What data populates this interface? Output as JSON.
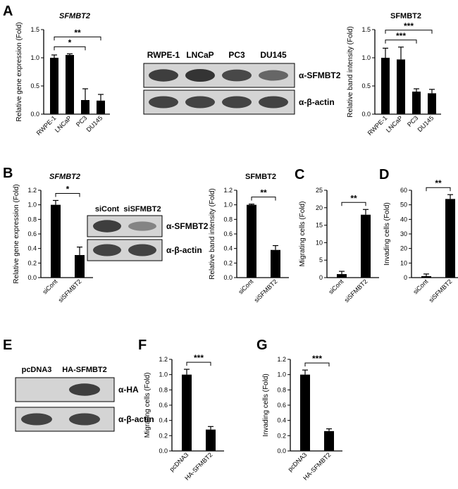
{
  "colors": {
    "bar": "#000000",
    "axis": "#000000",
    "blot_bg": "#d4d4d4",
    "band": "#2b2b2b"
  },
  "panel_letters": [
    "A",
    "B",
    "C",
    "D",
    "E",
    "F",
    "G"
  ],
  "blots": [
    {
      "id": "A",
      "columns": [
        "RWPE-1",
        "LNCaP",
        "PC3",
        "DU145"
      ],
      "rows": [
        {
          "label": "α-SFMBT2",
          "bands": [
            0.9,
            1.0,
            0.8,
            0.5
          ]
        },
        {
          "label": "α-β-actin",
          "bands": [
            0.85,
            0.85,
            0.85,
            0.85
          ]
        }
      ]
    },
    {
      "id": "B",
      "columns": [
        "siCont",
        "siSFMBT2"
      ],
      "rows": [
        {
          "label": "α-SFMBT2",
          "bands": [
            0.9,
            0.2
          ]
        },
        {
          "label": "α-β-actin",
          "bands": [
            0.85,
            0.85
          ]
        }
      ]
    },
    {
      "id": "E",
      "columns": [
        "pcDNA3",
        "HA-SFMBT2"
      ],
      "rows": [
        {
          "label": "α-HA",
          "bands": [
            0.0,
            0.9
          ]
        },
        {
          "label": "α-β-actin",
          "bands": [
            0.85,
            0.85
          ]
        }
      ]
    }
  ],
  "chart_data": [
    {
      "id": "A-qpcr",
      "type": "bar",
      "title": "SFMBT2",
      "title_italic": true,
      "ylabel": "Relative gene expression (Fold)",
      "categories": [
        "RWPE-1",
        "LNCaP",
        "PC3",
        "DU145"
      ],
      "values": [
        1.0,
        1.05,
        0.25,
        0.24
      ],
      "errors": [
        0.05,
        0.02,
        0.2,
        0.11
      ],
      "ylim": [
        0,
        1.5
      ],
      "yticks": [
        "0.0",
        "0.5",
        "1.0",
        "1.5"
      ],
      "significance": [
        {
          "from": 0,
          "to": 2,
          "label": "*"
        },
        {
          "from": 0,
          "to": 3,
          "label": "**"
        }
      ]
    },
    {
      "id": "A-band",
      "type": "bar",
      "title": "SFMBT2",
      "title_italic": false,
      "ylabel": "Relative band intensity (Fold)",
      "categories": [
        "RWPE-1",
        "LNCaP",
        "PC3",
        "DU145"
      ],
      "values": [
        1.0,
        0.97,
        0.4,
        0.37
      ],
      "errors": [
        0.17,
        0.22,
        0.05,
        0.07
      ],
      "ylim": [
        0,
        1.5
      ],
      "yticks": [
        "0.0",
        "0.5",
        "1.0",
        "1.5"
      ],
      "significance": [
        {
          "from": 0,
          "to": 2,
          "label": "***"
        },
        {
          "from": 0,
          "to": 3,
          "label": "***"
        }
      ]
    },
    {
      "id": "B-qpcr",
      "type": "bar",
      "title": "SFMBT2",
      "title_italic": true,
      "ylabel": "Relative gene expression (Fold)",
      "categories": [
        "siCont",
        "siSFMBT2"
      ],
      "values": [
        1.0,
        0.31
      ],
      "errors": [
        0.06,
        0.11
      ],
      "ylim": [
        0,
        1.2
      ],
      "yticks": [
        "0.0",
        "0.2",
        "0.4",
        "0.6",
        "0.8",
        "1.0",
        "1.2"
      ],
      "significance": [
        {
          "from": 0,
          "to": 1,
          "label": "*"
        }
      ]
    },
    {
      "id": "B-band",
      "type": "bar",
      "title": "SFMBT2",
      "title_italic": false,
      "ylabel": "Relative band intensity (Fold)",
      "categories": [
        "siCont",
        "siSFMBT2"
      ],
      "values": [
        1.0,
        0.38
      ],
      "errors": [
        0.01,
        0.06
      ],
      "ylim": [
        0,
        1.2
      ],
      "yticks": [
        "0.0",
        "0.2",
        "0.4",
        "0.6",
        "0.8",
        "1.0",
        "1.2"
      ],
      "significance": [
        {
          "from": 0,
          "to": 1,
          "label": "**"
        }
      ]
    },
    {
      "id": "C",
      "type": "bar",
      "title": "",
      "ylabel": "Migrating cells (Fold)",
      "categories": [
        "siCont",
        "siSFMBT2"
      ],
      "values": [
        1.0,
        18.0
      ],
      "errors": [
        0.8,
        1.5
      ],
      "ylim": [
        0,
        25
      ],
      "yticks": [
        "0",
        "5",
        "10",
        "15",
        "20",
        "25"
      ],
      "significance": [
        {
          "from": 0,
          "to": 1,
          "label": "**"
        }
      ]
    },
    {
      "id": "D",
      "type": "bar",
      "title": "",
      "ylabel": "Invading cells (Fold)",
      "categories": [
        "siCont",
        "siSFMBT2"
      ],
      "values": [
        1.0,
        54.0
      ],
      "errors": [
        1.5,
        3.0
      ],
      "ylim": [
        0,
        60
      ],
      "yticks": [
        "0",
        "10",
        "20",
        "30",
        "40",
        "50",
        "60"
      ],
      "significance": [
        {
          "from": 0,
          "to": 1,
          "label": "**"
        }
      ]
    },
    {
      "id": "F",
      "type": "bar",
      "title": "",
      "ylabel": "Migrating cells (Fold)",
      "categories": [
        "pcDNA3",
        "HA-SFMBT2"
      ],
      "values": [
        1.0,
        0.28
      ],
      "errors": [
        0.07,
        0.04
      ],
      "ylim": [
        0,
        1.2
      ],
      "yticks": [
        "0.0",
        "0.2",
        "0.4",
        "0.6",
        "0.8",
        "1.0",
        "1.2"
      ],
      "significance": [
        {
          "from": 0,
          "to": 1,
          "label": "***"
        }
      ]
    },
    {
      "id": "G",
      "type": "bar",
      "title": "",
      "ylabel": "Invading cells (Fold)",
      "categories": [
        "pcDNA3",
        "HA-SFMBT2"
      ],
      "values": [
        1.0,
        0.26
      ],
      "errors": [
        0.06,
        0.03
      ],
      "ylim": [
        0,
        1.2
      ],
      "yticks": [
        "0.0",
        "0.2",
        "0.4",
        "0.6",
        "0.8",
        "1.0",
        "1.2"
      ],
      "significance": [
        {
          "from": 0,
          "to": 1,
          "label": "***"
        }
      ]
    }
  ]
}
